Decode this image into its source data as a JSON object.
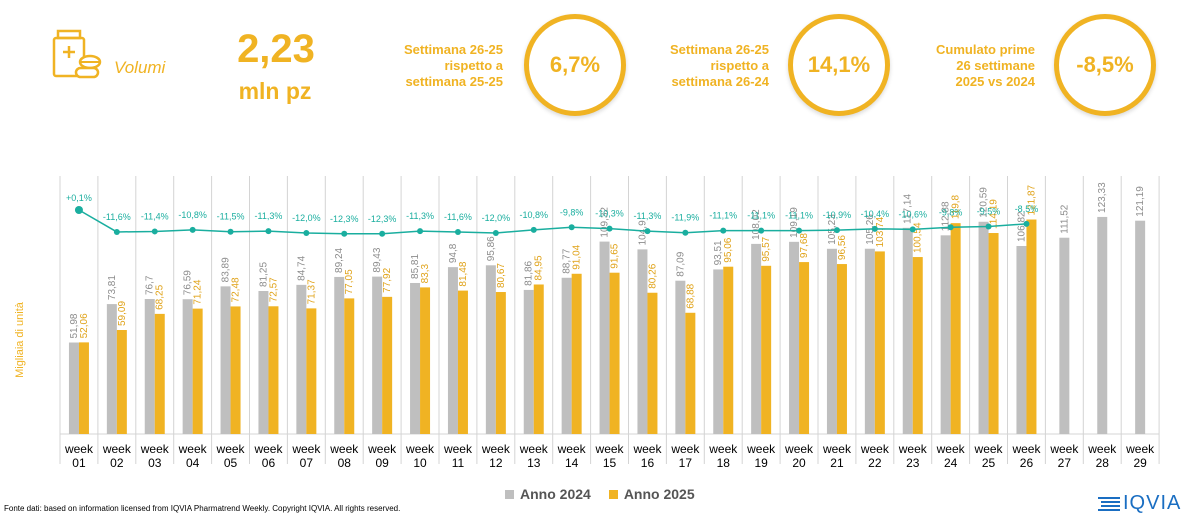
{
  "kpi": {
    "icon": "pill-bottle-icon",
    "label": "Volumi",
    "value": "2,23",
    "unit": "mln pz"
  },
  "comparisons": [
    {
      "label_lines": [
        "Settimana 26-25",
        "rispetto a",
        "settimana 25-25"
      ],
      "value": "6,7%"
    },
    {
      "label_lines": [
        "Settimana 26-25",
        "rispetto a",
        "settimana 26-24"
      ],
      "value": "14,1%"
    },
    {
      "label_lines": [
        "Cumulato prime",
        "26 settimane",
        "2025 vs 2024"
      ],
      "value": "-8,5%"
    }
  ],
  "colors": {
    "accent": "#F0B323",
    "series_2024": "#BFBFBF",
    "series_2025": "#F0B323",
    "line": "#1AAE9F"
  },
  "chart_data": {
    "type": "bar",
    "ylabel": "Migliaia di unità",
    "categories": [
      "week 01",
      "week 02",
      "week 03",
      "week 04",
      "week 05",
      "week 06",
      "week 07",
      "week 08",
      "week 09",
      "week 10",
      "week 11",
      "week 12",
      "week 13",
      "week 14",
      "week 15",
      "week 16",
      "week 17",
      "week 18",
      "week 19",
      "week 20",
      "week 21",
      "week 22",
      "week 23",
      "week 24",
      "week 25",
      "week 26",
      "week 27",
      "week 28",
      "week 29"
    ],
    "category_lines": [
      [
        "week",
        "01"
      ],
      [
        "week",
        "02"
      ],
      [
        "week",
        "03"
      ],
      [
        "week",
        "04"
      ],
      [
        "week",
        "05"
      ],
      [
        "week",
        "06"
      ],
      [
        "week",
        "07"
      ],
      [
        "week",
        "08"
      ],
      [
        "week",
        "09"
      ],
      [
        "week",
        "10"
      ],
      [
        "week",
        "11"
      ],
      [
        "week",
        "12"
      ],
      [
        "week",
        "13"
      ],
      [
        "week",
        "14"
      ],
      [
        "week",
        "15"
      ],
      [
        "week",
        "16"
      ],
      [
        "week",
        "17"
      ],
      [
        "week",
        "18"
      ],
      [
        "week",
        "19"
      ],
      [
        "week",
        "20"
      ],
      [
        "week",
        "21"
      ],
      [
        "week",
        "22"
      ],
      [
        "week",
        "23"
      ],
      [
        "week",
        "24"
      ],
      [
        "week",
        "25"
      ],
      [
        "week",
        "26"
      ],
      [
        "week",
        "27"
      ],
      [
        "week",
        "28"
      ],
      [
        "week",
        "29"
      ]
    ],
    "series": [
      {
        "name": "Anno 2024",
        "values": [
          51.98,
          73.81,
          76.7,
          76.59,
          83.89,
          81.25,
          84.74,
          89.24,
          89.43,
          85.81,
          94.8,
          95.86,
          81.86,
          88.77,
          109.32,
          104.9,
          87.09,
          93.51,
          108.02,
          109.19,
          105.23,
          105.26,
          117.14,
          112.88,
          120.59,
          106.82,
          111.52,
          123.33,
          121.19
        ],
        "labels": [
          "51,98",
          "73,81",
          "76,7",
          "76,59",
          "83,89",
          "81,25",
          "84,74",
          "89,24",
          "89,43",
          "85,81",
          "94,8",
          "95,86",
          "81,86",
          "88,77",
          "109,32",
          "104,9",
          "87,09",
          "93,51",
          "108,02",
          "109,19",
          "105,23",
          "105,26",
          "117,14",
          "112,88",
          "120,59",
          "106,82",
          "111,52",
          "123,33",
          "121,19"
        ]
      },
      {
        "name": "Anno 2025",
        "values": [
          52.06,
          59.09,
          68.25,
          71.24,
          72.48,
          72.57,
          71.37,
          77.05,
          77.92,
          83.3,
          81.48,
          80.67,
          84.95,
          91.04,
          91.65,
          80.26,
          68.88,
          95.06,
          95.57,
          97.68,
          96.56,
          103.74,
          100.54,
          119.8,
          114.19,
          121.87,
          null,
          null,
          null
        ],
        "labels": [
          "52,06",
          "59,09",
          "68,25",
          "71,24",
          "72,48",
          "72,57",
          "71,37",
          "77,05",
          "77,92",
          "83,3",
          "81,48",
          "80,67",
          "84,95",
          "91,04",
          "91,65",
          "80,26",
          "68,88",
          "95,06",
          "95,57",
          "97,68",
          "96,56",
          "103,74",
          "100,54",
          "119,8",
          "114,19",
          "121,87",
          "",
          "",
          ""
        ]
      }
    ],
    "variation": {
      "values": [
        0.1,
        -11.6,
        -11.4,
        -10.8,
        -11.5,
        -11.3,
        -12.0,
        -12.3,
        -12.3,
        -11.3,
        -11.6,
        -12.0,
        -10.8,
        -9.8,
        -10.3,
        -11.3,
        -11.9,
        -11.1,
        -11.1,
        -11.1,
        -10.9,
        -10.4,
        -10.6,
        -9.8,
        -9.5,
        -8.5
      ],
      "labels": [
        "+0,1%",
        "-11,6%",
        "-11,4%",
        "-10,8%",
        "-11,5%",
        "-11,3%",
        "-12,0%",
        "-12,3%",
        "-12,3%",
        "-11,3%",
        "-11,6%",
        "-12,0%",
        "-10,8%",
        "-9,8%",
        "-10,3%",
        "-11,3%",
        "-11,9%",
        "-11,1%",
        "-11,1%",
        "-11,1%",
        "-10,9%",
        "-10,4%",
        "-10,6%",
        "-9,8%",
        "-9,5%",
        "-8,5%"
      ]
    },
    "legend_position": "bottom",
    "grid": "vertical"
  },
  "footer": {
    "source": "Fonte dati: based on information licensed from IQVIA Pharmatrend Weekly. Copyright IQVIA. All rights reserved.",
    "logo_text": "IQVIA"
  }
}
